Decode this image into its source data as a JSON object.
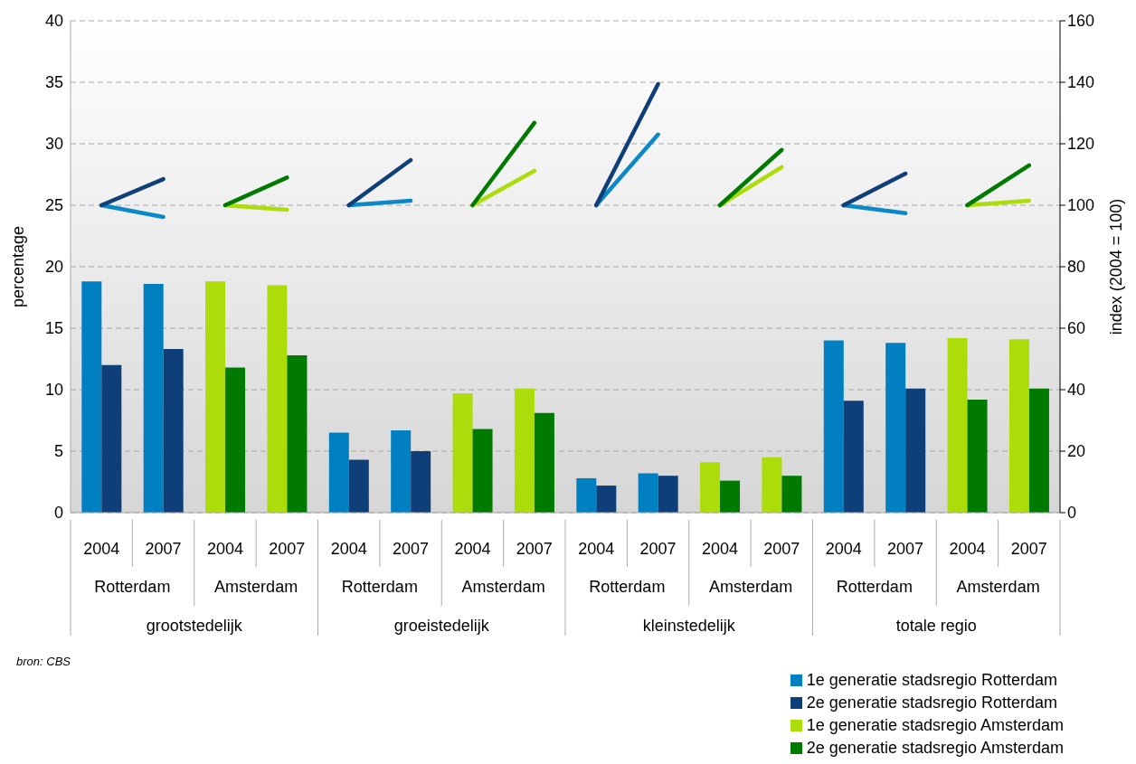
{
  "chart_data": {
    "type": "bar",
    "ylabel": "percentage",
    "y2label": "index (2004 = 100)",
    "categories": [
      "2004",
      "2007",
      "2004",
      "2007",
      "2004",
      "2007",
      "2004",
      "2007",
      "2004",
      "2007",
      "2004",
      "2007",
      "2004",
      "2007",
      "2004",
      "2007"
    ],
    "annotations": [
      "Rotterdam",
      "Amsterdam",
      "Rotterdam",
      "Amsterdam",
      "Rotterdam",
      "Amsterdam",
      "Rotterdam",
      "Amsterdam",
      "grootstedelijk",
      "groeistedelijk",
      "kleinstedelijk",
      "totale regio",
      "bron: CBS"
    ],
    "series": [
      {
        "name": "1e generatie stadsregio Rotterdam",
        "color": "#0080c0",
        "values": [
          18.8,
          18.6,
          null,
          null,
          6.5,
          6.7,
          null,
          null,
          2.8,
          3.2,
          null,
          null,
          14.0,
          13.8,
          null,
          null
        ]
      },
      {
        "name": "2e generatie stadsregio Rotterdam",
        "color": "#0f3f78",
        "values": [
          12.0,
          13.3,
          null,
          null,
          4.3,
          5.0,
          null,
          null,
          2.2,
          3.0,
          null,
          null,
          9.1,
          10.1,
          null,
          null
        ]
      },
      {
        "name": "1e generatie stadsregio Amsterdam",
        "color": "#acdc0a",
        "values": [
          null,
          null,
          18.8,
          18.5,
          null,
          null,
          9.7,
          10.1,
          null,
          null,
          4.1,
          4.5,
          null,
          null,
          14.2,
          14.1
        ]
      },
      {
        "name": "2e generatie stadsregio Amsterdam",
        "color": "#007a00",
        "values": [
          null,
          null,
          11.8,
          12.8,
          null,
          null,
          6.8,
          8.1,
          null,
          null,
          2.6,
          3.0,
          null,
          null,
          9.2,
          10.1
        ]
      },
      {
        "type": "line",
        "axis": "y2",
        "color": "#0a88c8",
        "values": [
          100,
          96.2,
          null,
          null,
          100,
          101.5,
          null,
          null,
          100,
          123,
          null,
          null,
          100,
          97.4,
          null,
          null
        ]
      },
      {
        "type": "line",
        "axis": "y2",
        "color": "#0f3f78",
        "values": [
          100,
          108.5,
          null,
          null,
          100,
          114.7,
          null,
          null,
          100,
          139.4,
          null,
          null,
          100,
          110.3,
          null,
          null
        ]
      },
      {
        "type": "line",
        "axis": "y2",
        "color": "#acdc0a",
        "values": [
          null,
          null,
          100,
          98.5,
          null,
          null,
          100,
          111.2,
          null,
          null,
          100,
          112.4,
          null,
          null,
          100,
          101.5
        ]
      },
      {
        "type": "line",
        "axis": "y2",
        "color": "#007a00",
        "values": [
          null,
          null,
          100,
          109,
          null,
          null,
          100,
          126.8,
          null,
          null,
          100,
          118,
          null,
          null,
          100,
          113
        ]
      }
    ],
    "ylim": [
      0,
      40
    ],
    "yticks": [
      0,
      5,
      10,
      15,
      20,
      25,
      30,
      35,
      40
    ],
    "y2lim": [
      0,
      160
    ],
    "y2ticks": [
      0,
      20,
      40,
      60,
      80,
      100,
      120,
      140,
      160
    ],
    "grid": "y",
    "legend": "bottom right",
    "marker": "none",
    "line_style": "solid"
  }
}
